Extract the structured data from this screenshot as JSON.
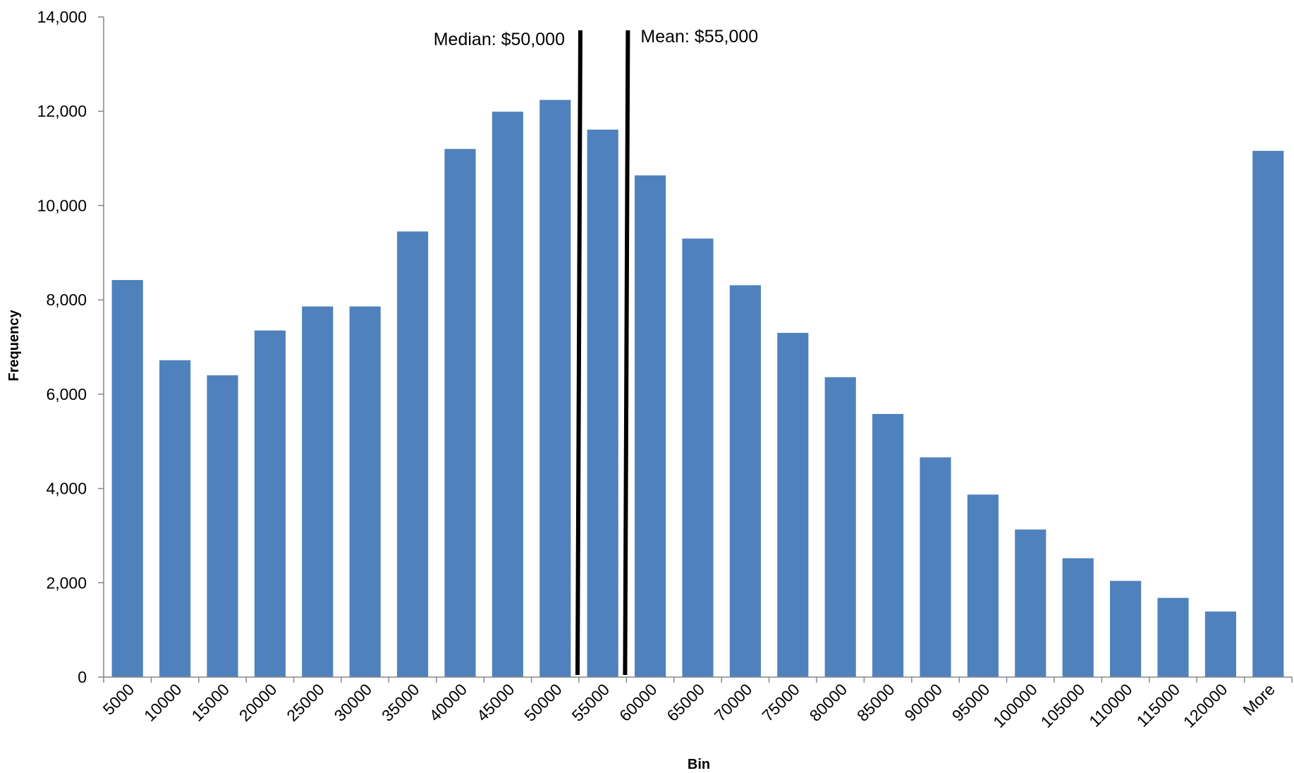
{
  "chart_data": {
    "type": "bar",
    "title": "",
    "xlabel": "Bin",
    "ylabel": "Frequency",
    "ylim": [
      0,
      14000
    ],
    "yticks": [
      0,
      2000,
      4000,
      6000,
      8000,
      10000,
      12000,
      14000
    ],
    "ytick_labels": [
      "0",
      "2,000",
      "4,000",
      "6,000",
      "8,000",
      "10,000",
      "12,000",
      "14,000"
    ],
    "grid": false,
    "legend": "none",
    "categories": [
      "5000",
      "10000",
      "15000",
      "20000",
      "25000",
      "30000",
      "35000",
      "40000",
      "45000",
      "50000",
      "55000",
      "60000",
      "65000",
      "70000",
      "75000",
      "80000",
      "85000",
      "90000",
      "95000",
      "100000",
      "105000",
      "110000",
      "115000",
      "120000",
      "More"
    ],
    "values": [
      8420,
      6720,
      6400,
      7350,
      7860,
      7860,
      9450,
      11200,
      11990,
      12240,
      11610,
      10640,
      9300,
      8310,
      7300,
      6360,
      5580,
      4660,
      3870,
      3130,
      2520,
      2040,
      1680,
      1390,
      11160
    ],
    "bar_color": "#4f81bd",
    "annotations": [
      {
        "label": "Median: $50,000",
        "value": 50000
      },
      {
        "label": "Mean: $55,000",
        "value": 55000
      }
    ]
  }
}
